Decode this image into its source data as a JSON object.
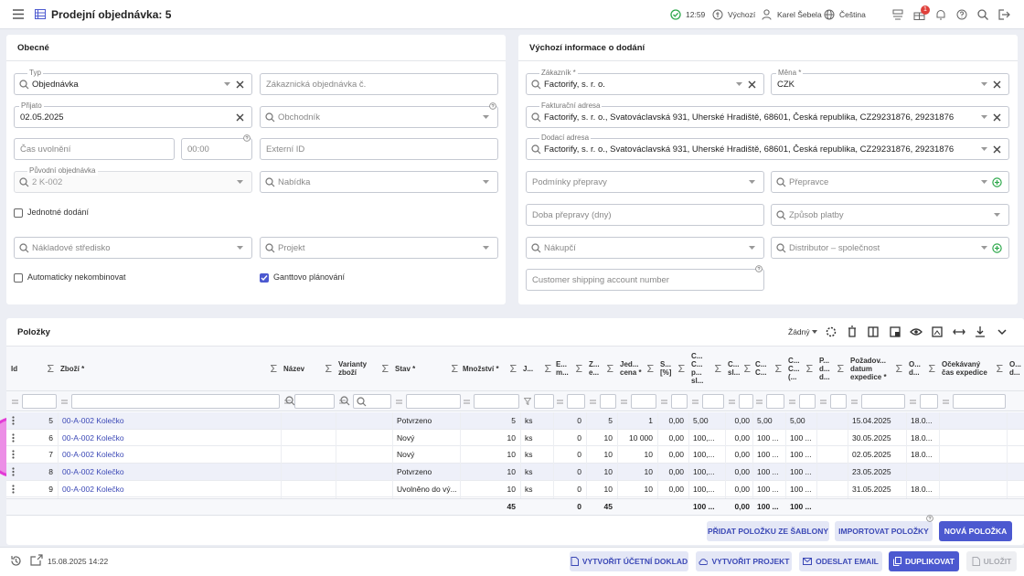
{
  "header": {
    "title": "Prodejní objednávka: 5",
    "time": "12:59",
    "profile": "Výchozí",
    "user": "Karel Šebela",
    "language": "Čeština",
    "notification_count": "1"
  },
  "general": {
    "title": "Obecné",
    "fields": [
      {
        "label": "Typ",
        "value": "Objednávka"
      },
      {
        "placeholder": "Zákaznická objednávka č."
      },
      {
        "label": "Přijato",
        "value": "02.05.2025"
      },
      {
        "placeholder": "Obchodník"
      },
      {
        "placeholder": "Čas uvolnění"
      },
      {
        "placeholder": "00:00"
      },
      {
        "placeholder": "Externí ID"
      },
      {
        "label": "Původní objednávka",
        "value": "2 K-002"
      },
      {
        "placeholder": "Nabídka"
      },
      {
        "placeholder": "Nákladové středisko"
      },
      {
        "placeholder": "Projekt"
      }
    ],
    "checkboxes": [
      {
        "label": "Jednotné dodání",
        "checked": false
      },
      {
        "label": "Automaticky nekombinovat",
        "checked": false
      },
      {
        "label": "Ganttovo plánování",
        "checked": true
      }
    ]
  },
  "delivery": {
    "title": "Výchozí informace o dodání",
    "fields": [
      {
        "label": "Zákazník *",
        "value": "Factorify, s. r. o."
      },
      {
        "label": "Měna *",
        "value": "CZK"
      },
      {
        "label": "Fakturační adresa",
        "value": "Factorify, s. r. o., Svatováclavská 931, Uherské Hradiště, 68601, Česká republika, CZ29231876, 29231876"
      },
      {
        "label": "Dodací adresa",
        "value": "Factorify, s. r. o., Svatováclavská 931, Uherské Hradiště, 68601, Česká republika, CZ29231876, 29231876"
      },
      {
        "placeholder": "Podmínky přepravy"
      },
      {
        "placeholder": "Přepravce"
      },
      {
        "placeholder": "Doba přepravy (dny)"
      },
      {
        "placeholder": "Způsob platby"
      },
      {
        "placeholder": "Nákupčí"
      },
      {
        "placeholder": "Distributor – společnost"
      },
      {
        "placeholder": "Customer shipping account number"
      }
    ]
  },
  "items": {
    "title": "Položky",
    "view": "Žádný",
    "columns": [
      "Id",
      "Zboží *",
      "Název",
      "Varianty zboží",
      "Stav *",
      "Množství *",
      "J...",
      "E... m...",
      "Z... e...",
      "Jed... cena *",
      "S... [%]",
      "C... C... p... sl...",
      "C... sl...",
      "C... C...",
      "C... C... (...",
      "P... d... d...",
      "Požadov... datum expedice *",
      "O... d...",
      "Očekávaný čas expedice",
      "O... d..."
    ],
    "rows": [
      [
        "5",
        "00-A-002 Kolečko",
        null,
        null,
        "Potvrzeno",
        "5",
        "ks",
        "0",
        "5",
        "1",
        "0,00",
        "5,00",
        "0,00",
        "5,00",
        "5,00",
        null,
        "15.04.2025",
        "18.0...",
        null,
        null
      ],
      [
        "6",
        "00-A-002 Kolečko",
        null,
        null,
        "Nový",
        "10",
        "ks",
        "0",
        "10",
        "10 000",
        "0,00",
        "100,...",
        "0,00",
        "100 ...",
        "100 ...",
        null,
        "30.05.2025",
        "18.0...",
        null,
        null
      ],
      [
        "7",
        "00-A-002 Kolečko",
        null,
        null,
        "Nový",
        "10",
        "ks",
        "0",
        "10",
        "10",
        "0,00",
        "100,...",
        "0,00",
        "100 ...",
        "100 ...",
        null,
        "02.05.2025",
        "18.0...",
        null,
        null
      ],
      [
        "8",
        "00-A-002 Kolečko",
        null,
        null,
        "Potvrzeno",
        "10",
        "ks",
        "0",
        "10",
        "10",
        "0,00",
        "100,...",
        "0,00",
        "100 ...",
        "100 ...",
        null,
        "23.05.2025",
        null,
        null,
        null
      ],
      [
        "9",
        "00-A-002 Kolečko",
        null,
        null,
        "Uvolněno do vý...",
        "10",
        "ks",
        "0",
        "10",
        "10",
        "0,00",
        "100,...",
        "0,00",
        "100 ...",
        "100 ...",
        null,
        "31.05.2025",
        "18.0...",
        null,
        null
      ]
    ],
    "totals": [
      null,
      null,
      null,
      null,
      null,
      "45",
      null,
      "0",
      "45",
      null,
      null,
      "100 ...",
      "0,00",
      "100 ...",
      "100 ...",
      null,
      null,
      null,
      null,
      null
    ],
    "actions": [
      "PŘIDAT POLOŽKU ZE ŠABLONY",
      "IMPORTOVAT POLOŽKY",
      "NOVÁ POLOŽKA"
    ]
  },
  "footer": {
    "timestamp": "15.08.2025 14:22",
    "actions": [
      "VYTVOŘIT ÚČETNÍ DOKLAD",
      "VYTVOŘIT PROJEKT",
      "ODESLAT EMAIL",
      "DUPLIKOVAT",
      "ULOŽIT"
    ]
  }
}
